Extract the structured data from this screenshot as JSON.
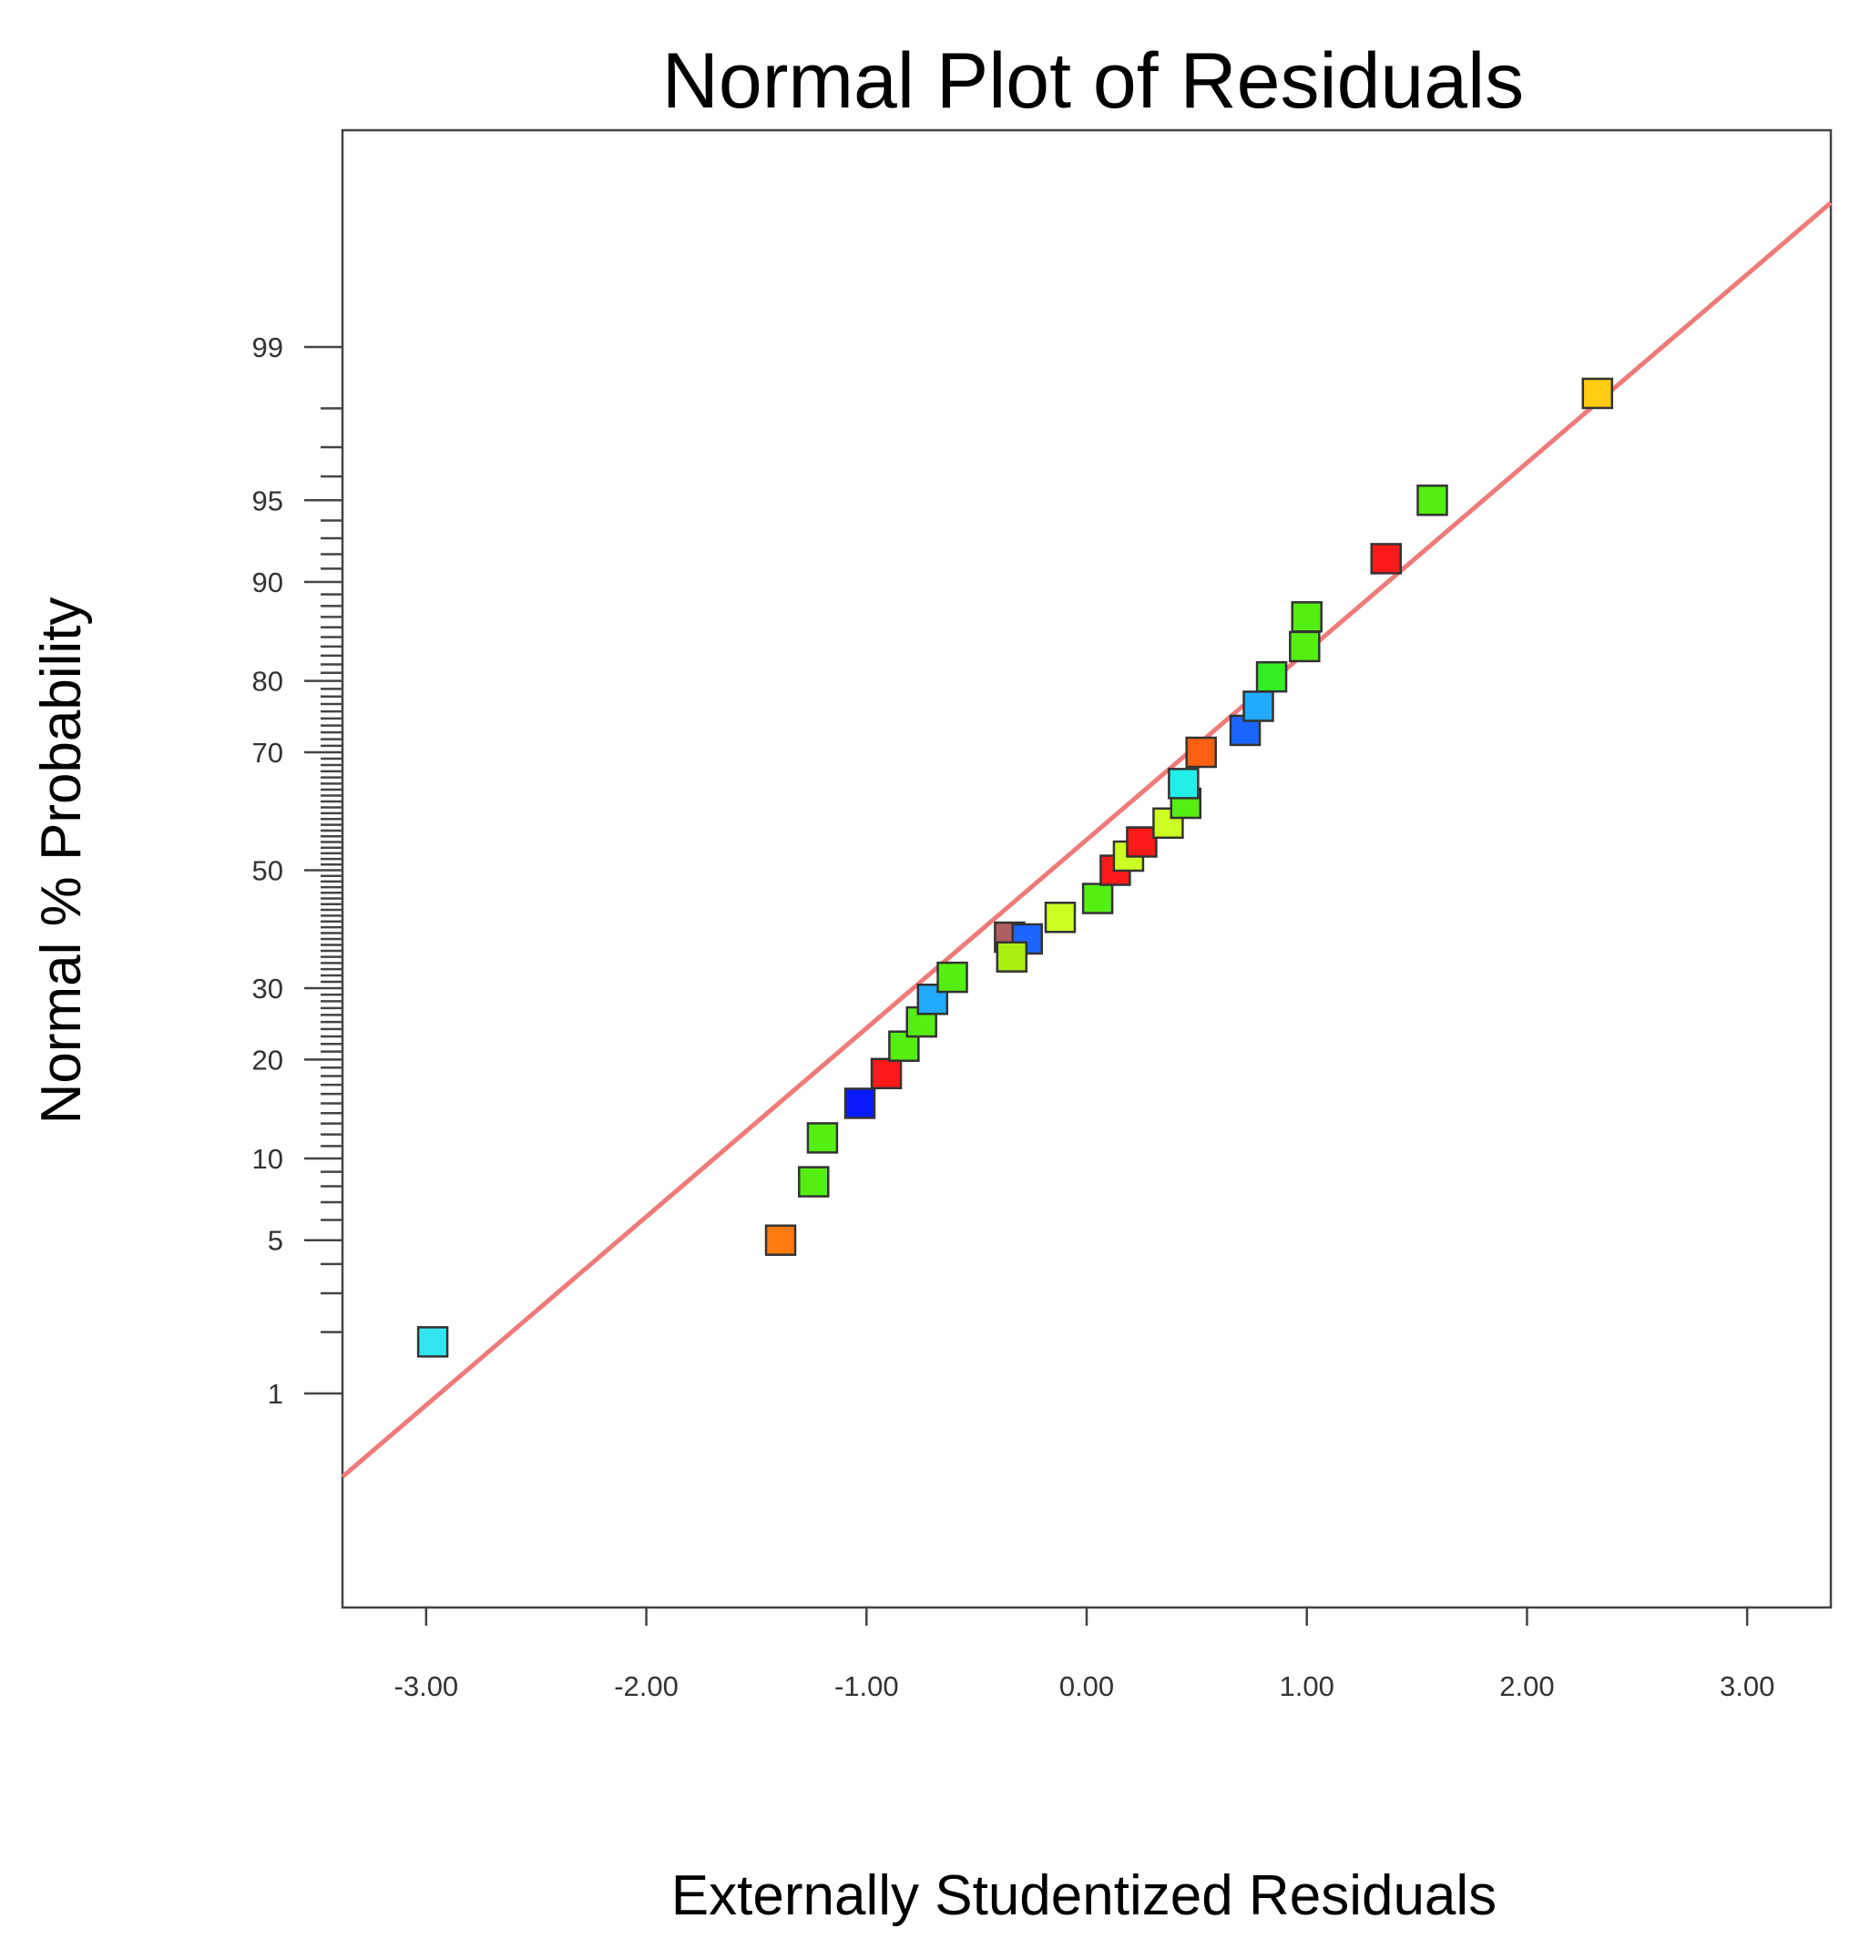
{
  "chart_data": {
    "type": "scatter",
    "title": "Normal Plot of Residuals",
    "xlabel": "Externally Studentized Residuals",
    "ylabel": "Normal % Probability",
    "xlim": [
      -3.38,
      3.38
    ],
    "x_ticks": [
      -3,
      -2,
      -1,
      0,
      1,
      2,
      3
    ],
    "x_tick_labels": [
      "-3.00",
      "-2.00",
      "-1.00",
      "0.00",
      "1.00",
      "2.00",
      "3.00"
    ],
    "y_scale": "normal-probability",
    "y_labeled_ticks": [
      1,
      5,
      10,
      20,
      30,
      50,
      70,
      80,
      90,
      95,
      99
    ],
    "y_tick_labels": [
      "1",
      "5",
      "10",
      "20",
      "30",
      "50",
      "70",
      "80",
      "90",
      "95",
      "99"
    ],
    "y_minor_ticks": [
      2,
      3,
      4,
      6,
      7,
      8,
      9,
      11,
      12,
      13,
      14,
      15,
      16,
      17,
      18,
      19,
      21,
      22,
      23,
      24,
      25,
      26,
      27,
      28,
      29,
      31,
      32,
      33,
      34,
      35,
      36,
      37,
      38,
      39,
      40,
      41,
      42,
      43,
      44,
      45,
      46,
      47,
      48,
      49,
      51,
      52,
      53,
      54,
      55,
      56,
      57,
      58,
      59,
      60,
      61,
      62,
      63,
      64,
      65,
      66,
      67,
      68,
      69,
      71,
      72,
      73,
      74,
      75,
      76,
      77,
      78,
      79,
      81,
      82,
      83,
      84,
      85,
      86,
      87,
      88,
      89,
      91,
      92,
      93,
      94,
      96,
      97,
      98
    ],
    "fit_line": {
      "x": [
        -3.38,
        3.38
      ],
      "y": [
        0.35,
        99.85
      ]
    },
    "points": [
      {
        "x": -2.97,
        "y": 1.8,
        "color": "#33e6f0"
      },
      {
        "x": -1.39,
        "y": 5.0,
        "color": "#ff7a10"
      },
      {
        "x": -1.24,
        "y": 8.3,
        "color": "#55ee11"
      },
      {
        "x": -1.2,
        "y": 11.7,
        "color": "#55ee11"
      },
      {
        "x": -1.03,
        "y": 15.0,
        "color": "#0a1aff"
      },
      {
        "x": -0.91,
        "y": 18.3,
        "color": "#ff1a1a"
      },
      {
        "x": -0.83,
        "y": 21.7,
        "color": "#55ee11"
      },
      {
        "x": -0.75,
        "y": 25.0,
        "color": "#55ee11"
      },
      {
        "x": -0.7,
        "y": 28.3,
        "color": "#22aaff"
      },
      {
        "x": -0.61,
        "y": 31.7,
        "color": "#55ee11"
      },
      {
        "x": -0.35,
        "y": 38.3,
        "color": "#b06060"
      },
      {
        "x": -0.27,
        "y": 38.0,
        "color": "#1a66ff"
      },
      {
        "x": -0.34,
        "y": 35.0,
        "color": "#aaee11"
      },
      {
        "x": -0.12,
        "y": 41.7,
        "color": "#ccff22"
      },
      {
        "x": 0.05,
        "y": 45.0,
        "color": "#55ee11"
      },
      {
        "x": 0.13,
        "y": 50.0,
        "color": "#ff1a1a"
      },
      {
        "x": 0.19,
        "y": 52.5,
        "color": "#ccff22"
      },
      {
        "x": 0.25,
        "y": 55.0,
        "color": "#ff1a1a"
      },
      {
        "x": 0.37,
        "y": 58.3,
        "color": "#ccff22"
      },
      {
        "x": 0.45,
        "y": 61.7,
        "color": "#55ee11"
      },
      {
        "x": 0.44,
        "y": 65.0,
        "color": "#22f0e8"
      },
      {
        "x": 0.52,
        "y": 70.0,
        "color": "#ff6010"
      },
      {
        "x": 0.72,
        "y": 73.3,
        "color": "#1a66ff"
      },
      {
        "x": 0.78,
        "y": 76.7,
        "color": "#22aaff"
      },
      {
        "x": 0.84,
        "y": 80.5,
        "color": "#33ee22"
      },
      {
        "x": 0.99,
        "y": 84.0,
        "color": "#55ee11"
      },
      {
        "x": 1.0,
        "y": 87.0,
        "color": "#55ee11"
      },
      {
        "x": 1.36,
        "y": 91.7,
        "color": "#ff1a1a"
      },
      {
        "x": 1.57,
        "y": 95.0,
        "color": "#55ee11"
      },
      {
        "x": 2.32,
        "y": 98.3,
        "color": "#ffcc11"
      }
    ]
  }
}
